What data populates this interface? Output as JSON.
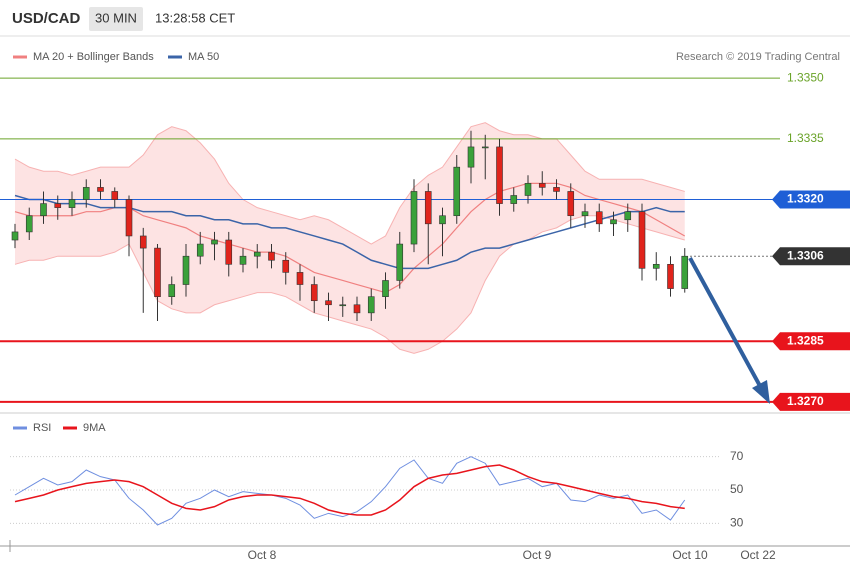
{
  "chart_data": [
    {
      "type": "candlestick",
      "title": "USD/CAD",
      "timeframe": "30 MIN",
      "time": "13:28:58 CET",
      "legend": [
        "MA 20 + Bollinger Bands",
        "MA 50"
      ],
      "copyright": "Research © 2019 Trading Central",
      "ylim": [
        1.3268,
        1.33525
      ],
      "colors": {
        "up": "#3aa13a",
        "down": "#e0241c",
        "band": "#fde3e3",
        "band_edge": "#f7b2b2",
        "ma20": "#f08080",
        "ma50": "#3b64a8"
      },
      "x_labels": [
        "Oct 8",
        "Oct 9",
        "Oct 10",
        "Oct 22"
      ],
      "levels": [
        {
          "value": 1.335,
          "label": "1.3350",
          "color": "#6aa329",
          "tag": false,
          "dash": false
        },
        {
          "value": 1.3335,
          "label": "1.3335",
          "color": "#6aa329",
          "tag": false,
          "dash": false
        },
        {
          "value": 1.332,
          "label": "1.3320",
          "color": "#1f5fd6",
          "tag": true,
          "dash": false
        },
        {
          "value": 1.3306,
          "label": "1.3306",
          "color": "#333333",
          "tag": true,
          "dash": true
        },
        {
          "value": 1.3285,
          "label": "1.3285",
          "color": "#e8141c",
          "tag": true,
          "dash": false
        },
        {
          "value": 1.327,
          "label": "1.3270",
          "color": "#e8141c",
          "tag": true,
          "dash": false
        }
      ],
      "open": [
        1.331,
        1.3312,
        1.3316,
        1.3319,
        1.3318,
        1.332,
        1.3323,
        1.3322,
        1.332,
        1.3311,
        1.3308,
        1.3296,
        1.3299,
        1.3306,
        1.3309,
        1.331,
        1.3304,
        1.3306,
        1.3307,
        1.3305,
        1.3302,
        1.3299,
        1.3295,
        1.3294,
        1.3294,
        1.3292,
        1.3296,
        1.33,
        1.3309,
        1.3322,
        1.3314,
        1.3316,
        1.3328,
        1.3333,
        1.3333,
        1.3319,
        1.3321,
        1.3324,
        1.3323,
        1.3322,
        1.3316,
        1.3317,
        1.3314,
        1.3315,
        1.3317,
        1.3303,
        1.3304,
        1.3298
      ],
      "high": [
        1.3314,
        1.3318,
        1.3322,
        1.3321,
        1.3322,
        1.3325,
        1.3325,
        1.3323,
        1.3321,
        1.3313,
        1.3309,
        1.3301,
        1.3309,
        1.3312,
        1.3312,
        1.3312,
        1.3308,
        1.3309,
        1.3309,
        1.3307,
        1.3304,
        1.3301,
        1.3297,
        1.3296,
        1.3296,
        1.3298,
        1.3302,
        1.3312,
        1.3325,
        1.3324,
        1.3318,
        1.3331,
        1.3337,
        1.3336,
        1.3335,
        1.3323,
        1.3326,
        1.3327,
        1.3325,
        1.3324,
        1.3319,
        1.3319,
        1.3317,
        1.3319,
        1.3319,
        1.3307,
        1.3306,
        1.3308
      ],
      "low": [
        1.3308,
        1.331,
        1.3314,
        1.3315,
        1.3316,
        1.3318,
        1.332,
        1.3318,
        1.3306,
        1.3292,
        1.329,
        1.3294,
        1.3296,
        1.3304,
        1.3305,
        1.3301,
        1.3302,
        1.3303,
        1.3303,
        1.3299,
        1.3295,
        1.3292,
        1.329,
        1.3291,
        1.329,
        1.329,
        1.3293,
        1.3298,
        1.3307,
        1.3304,
        1.3306,
        1.3314,
        1.3324,
        1.3325,
        1.3316,
        1.3317,
        1.3319,
        1.3321,
        1.332,
        1.3313,
        1.3313,
        1.3312,
        1.3311,
        1.3312,
        1.33,
        1.33,
        1.3296,
        1.3297
      ],
      "close": [
        1.3312,
        1.3316,
        1.3319,
        1.3318,
        1.332,
        1.3323,
        1.3322,
        1.332,
        1.3311,
        1.3308,
        1.3296,
        1.3299,
        1.3306,
        1.3309,
        1.331,
        1.3304,
        1.3306,
        1.3307,
        1.3305,
        1.3302,
        1.3299,
        1.3295,
        1.3294,
        1.3294,
        1.3292,
        1.3296,
        1.33,
        1.3309,
        1.3322,
        1.3314,
        1.3316,
        1.3328,
        1.3333,
        1.3333,
        1.3319,
        1.3321,
        1.3324,
        1.3323,
        1.3322,
        1.3316,
        1.3317,
        1.3314,
        1.3315,
        1.3317,
        1.3303,
        1.3304,
        1.3298,
        1.3306
      ],
      "bb_upper": [
        1.333,
        1.3328,
        1.3327,
        1.3327,
        1.3326,
        1.3327,
        1.3328,
        1.3328,
        1.3328,
        1.3331,
        1.3336,
        1.3338,
        1.3337,
        1.3334,
        1.333,
        1.3324,
        1.332,
        1.3318,
        1.3317,
        1.3316,
        1.3315,
        1.3316,
        1.3315,
        1.3313,
        1.3311,
        1.3309,
        1.3311,
        1.3318,
        1.3323,
        1.3326,
        1.3328,
        1.3333,
        1.3338,
        1.3339,
        1.3337,
        1.3336,
        1.3336,
        1.3335,
        1.3335,
        1.3331,
        1.3327,
        1.3325,
        1.3325,
        1.3325,
        1.3325,
        1.3324,
        1.3323,
        1.3322
      ],
      "bb_lower": [
        1.3304,
        1.3305,
        1.3305,
        1.3306,
        1.3306,
        1.3306,
        1.3306,
        1.3307,
        1.3309,
        1.3302,
        1.3295,
        1.3293,
        1.3292,
        1.3292,
        1.3294,
        1.3295,
        1.3296,
        1.3297,
        1.3297,
        1.3296,
        1.3294,
        1.3292,
        1.3291,
        1.329,
        1.3289,
        1.3288,
        1.3286,
        1.3283,
        1.3282,
        1.3283,
        1.3285,
        1.3288,
        1.3292,
        1.33,
        1.3306,
        1.3309,
        1.331,
        1.3312,
        1.3313,
        1.3315,
        1.3316,
        1.3316,
        1.3315,
        1.3314,
        1.3313,
        1.3312,
        1.3311,
        1.331
      ],
      "ma20": [
        1.3317,
        1.3316,
        1.3316,
        1.3316,
        1.3316,
        1.3317,
        1.3317,
        1.3318,
        1.3318,
        1.3316,
        1.3315,
        1.3314,
        1.3313,
        1.3311,
        1.331,
        1.3309,
        1.3308,
        1.3307,
        1.3307,
        1.3306,
        1.3304,
        1.3302,
        1.3301,
        1.33,
        1.3299,
        1.3298,
        1.3297,
        1.3299,
        1.3303,
        1.3306,
        1.3309,
        1.3313,
        1.3317,
        1.332,
        1.3322,
        1.3323,
        1.3324,
        1.3324,
        1.3324,
        1.3323,
        1.3321,
        1.332,
        1.3319,
        1.3318,
        1.3317,
        1.3315,
        1.3313,
        1.3311
      ],
      "ma50": [
        1.3321,
        1.332,
        1.332,
        1.3319,
        1.3319,
        1.3319,
        1.3318,
        1.3318,
        1.3318,
        1.3317,
        1.3317,
        1.3317,
        1.3316,
        1.3316,
        1.3315,
        1.3315,
        1.3314,
        1.3314,
        1.3313,
        1.3313,
        1.3312,
        1.3311,
        1.331,
        1.3309,
        1.3307,
        1.3305,
        1.3304,
        1.3303,
        1.3303,
        1.3303,
        1.3304,
        1.3305,
        1.3307,
        1.3308,
        1.3308,
        1.3309,
        1.331,
        1.3311,
        1.3312,
        1.3313,
        1.3314,
        1.3315,
        1.3316,
        1.3317,
        1.3317,
        1.3318,
        1.3317,
        1.3317
      ]
    },
    {
      "type": "line",
      "legend": [
        "RSI",
        "9MA"
      ],
      "ylim": [
        20,
        80
      ],
      "yticks": [
        30,
        50,
        70
      ],
      "grid": true,
      "series": [
        {
          "name": "RSI",
          "color": "#6f8fe0",
          "values": [
            47,
            52,
            57,
            53,
            55,
            62,
            58,
            56,
            45,
            38,
            29,
            33,
            42,
            45,
            50,
            46,
            49,
            48,
            47,
            45,
            41,
            33,
            36,
            34,
            37,
            43,
            52,
            63,
            68,
            57,
            54,
            66,
            70,
            66,
            53,
            55,
            57,
            52,
            54,
            44,
            43,
            47,
            45,
            47,
            36,
            38,
            32,
            44
          ]
        },
        {
          "name": "9MA",
          "color": "#e8141c",
          "values": [
            43,
            45,
            47,
            50,
            52,
            54,
            55,
            56,
            55,
            52,
            47,
            42,
            39,
            38,
            40,
            44,
            46,
            47,
            47,
            46,
            45,
            42,
            38,
            36,
            35,
            35,
            38,
            44,
            52,
            57,
            59,
            60,
            62,
            64,
            65,
            62,
            58,
            55,
            54,
            52,
            50,
            48,
            46,
            45,
            43,
            42,
            40,
            39
          ]
        }
      ]
    }
  ]
}
